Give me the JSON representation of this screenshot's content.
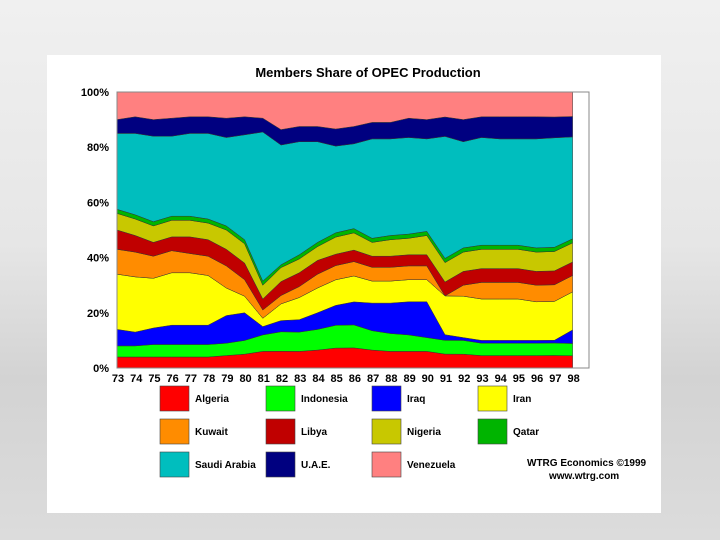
{
  "chart_data": {
    "type": "area",
    "stacked_percent": true,
    "title": "Members Share of OPEC Production",
    "xlabel": "",
    "ylabel": "",
    "ylim": [
      0,
      100
    ],
    "y_ticks": [
      "0%",
      "20%",
      "40%",
      "60%",
      "80%",
      "100%"
    ],
    "x_ticks": [
      "73",
      "74",
      "75",
      "76",
      "77",
      "78",
      "79",
      "80",
      "81",
      "82",
      "83",
      "84",
      "85",
      "86",
      "87",
      "88",
      "89",
      "90",
      "91",
      "92",
      "93",
      "94",
      "95",
      "96",
      "97",
      "98"
    ],
    "x": [
      73,
      74,
      75,
      76,
      77,
      78,
      79,
      80,
      81,
      82,
      83,
      84,
      85,
      86,
      87,
      88,
      89,
      90,
      91,
      92,
      93,
      94,
      95,
      96,
      97,
      98
    ],
    "series": [
      {
        "name": "Algeria",
        "color": "#ff0000",
        "values": [
          4,
          4,
          4,
          4,
          4,
          4,
          4.5,
          5,
          6,
          6,
          6,
          6.5,
          7,
          7,
          6.5,
          6,
          6,
          6,
          5,
          5,
          4.5,
          4.5,
          4.5,
          4.5,
          4.5,
          4.5
        ]
      },
      {
        "name": "Indonesia",
        "color": "#00ff00",
        "values": [
          4,
          4,
          4.5,
          4.5,
          4.5,
          4.5,
          4.5,
          5,
          6,
          7,
          7,
          7.5,
          8,
          8,
          7,
          6.5,
          6,
          5,
          5,
          5,
          4.5,
          4.5,
          4.5,
          4.5,
          4.5,
          4.5
        ]
      },
      {
        "name": "Iraq",
        "color": "#0000ff",
        "values": [
          6,
          5,
          6,
          7,
          7,
          7,
          10,
          10,
          3,
          4,
          4.5,
          6,
          7,
          8,
          10,
          11,
          12,
          13,
          2,
          1,
          1,
          1,
          1,
          1,
          1,
          5
        ]
      },
      {
        "name": "Iran",
        "color": "#ffff00",
        "values": [
          20,
          20,
          18,
          19,
          19,
          18,
          10,
          6,
          3,
          6,
          8,
          9,
          9,
          9,
          8,
          8,
          8,
          8,
          14,
          15,
          15,
          15,
          15,
          14,
          14,
          14
        ]
      },
      {
        "name": "Kuwait",
        "color": "#ff8c00",
        "values": [
          9,
          9,
          8,
          8,
          7,
          7,
          8,
          6,
          3,
          3,
          4,
          5,
          5,
          5,
          5,
          5,
          5,
          5,
          0,
          4,
          6,
          6,
          6,
          6,
          6,
          6
        ]
      },
      {
        "name": "Libya",
        "color": "#c00000",
        "values": [
          7,
          6,
          5,
          5,
          6,
          6,
          6,
          6,
          4,
          5,
          5,
          5,
          4,
          4,
          4,
          4,
          4,
          4,
          5,
          5,
          5,
          5,
          5,
          5,
          5,
          5
        ]
      },
      {
        "name": "Nigeria",
        "color": "#c8c800",
        "values": [
          6,
          6,
          6,
          6,
          6,
          6,
          7,
          7,
          5,
          5,
          5,
          5,
          6,
          6,
          5,
          6,
          6,
          7,
          7,
          7,
          7,
          7,
          7,
          7,
          7,
          7
        ]
      },
      {
        "name": "Qatar",
        "color": "#00b400",
        "values": [
          1.5,
          1.5,
          1.5,
          1.5,
          1.5,
          1.5,
          1.5,
          1.5,
          1.5,
          1,
          1.5,
          1.5,
          1.5,
          1.5,
          1.5,
          1.5,
          1.5,
          1.5,
          1.5,
          1.5,
          1.5,
          1.5,
          1.5,
          1.5,
          1.5,
          1.5
        ]
      },
      {
        "name": "Saudi Arabia",
        "color": "#00bebe",
        "values": [
          27.5,
          29.5,
          31,
          29,
          30,
          31,
          32,
          38,
          54,
          43,
          41,
          36.5,
          30.5,
          29.5,
          36,
          35,
          35,
          33.5,
          44,
          38.5,
          39,
          38.5,
          38.5,
          39.5,
          39.5,
          37.5
        ]
      },
      {
        "name": "U.A.E.",
        "color": "#000080",
        "values": [
          5,
          6,
          6,
          6.5,
          6,
          6,
          7,
          6.5,
          5,
          5.5,
          5.5,
          5.5,
          6,
          6,
          6,
          6,
          7,
          7,
          7,
          8,
          7.5,
          8,
          8,
          8,
          7.5,
          7.5
        ]
      },
      {
        "name": "Venezuela",
        "color": "#ff8080",
        "values": [
          10,
          9,
          10,
          9.5,
          9,
          9,
          9.5,
          9,
          9.5,
          13.5,
          12.5,
          12.5,
          13,
          12,
          11,
          11,
          9.5,
          10,
          9,
          10,
          9,
          9,
          9,
          9,
          9,
          9
        ]
      }
    ],
    "legend_position": "bottom",
    "credit_line1": "WTRG Economics  ©1999",
    "credit_line2": "www.wtrg.com"
  }
}
